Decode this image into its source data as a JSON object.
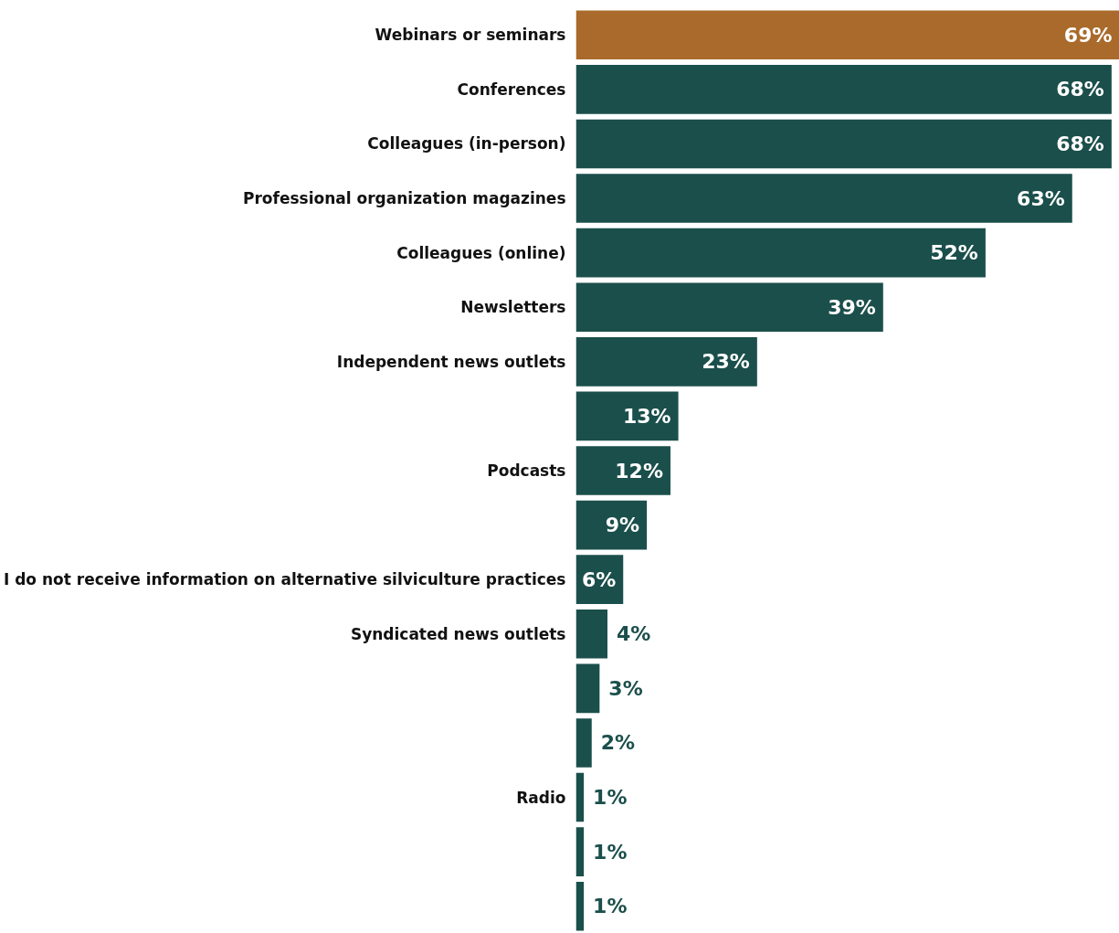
{
  "chart_data": {
    "type": "bar",
    "orientation": "horizontal",
    "categories": [
      "Webinars or seminars",
      "Conferences",
      "Colleagues (in-person)",
      "Professional organization magazines",
      "Colleagues (online)",
      "Newsletters",
      "Independent news outlets",
      null,
      "Podcasts",
      null,
      "I do not receive information on alternative silviculture practices",
      "Syndicated news outlets",
      null,
      null,
      "Radio",
      null,
      null
    ],
    "values": [
      69,
      68,
      68,
      63,
      52,
      39,
      23,
      13,
      12,
      9,
      6,
      4,
      3,
      2,
      1,
      1,
      1
    ],
    "colors": [
      "#a96a2b",
      "#1b4f4b",
      "#1b4f4b",
      "#1b4f4b",
      "#1b4f4b",
      "#1b4f4b",
      "#1b4f4b",
      "#1b4f4b",
      "#1b4f4b",
      "#1b4f4b",
      "#1b4f4b",
      "#1b4f4b",
      "#1b4f4b",
      "#1b4f4b",
      "#1b4f4b",
      "#1b4f4b",
      "#1b4f4b"
    ],
    "value_labels": [
      "69%",
      "68%",
      "68%",
      "63%",
      "52%",
      "39%",
      "23%",
      "13%",
      "12%",
      "9%",
      "6%",
      "4%",
      "3%",
      "2%",
      "1%",
      "1%",
      "1%"
    ],
    "xlim": [
      0,
      69
    ],
    "tick_labels": "y",
    "grid": false
  }
}
